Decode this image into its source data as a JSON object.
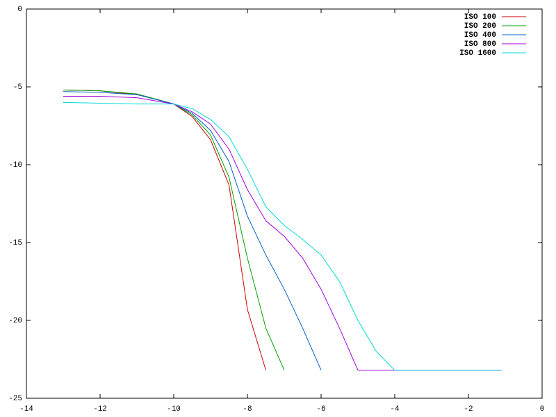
{
  "chart_data": {
    "type": "line",
    "x": [
      -13,
      -12,
      -11,
      -10,
      -9.5,
      -9,
      -8.5,
      -8,
      -7.5,
      -7,
      -6.5,
      -6,
      -5.5,
      -5,
      -4.5,
      -4,
      -3,
      -2,
      -1.1
    ],
    "series": [
      {
        "name": "ISO 100",
        "color": "#cc0000",
        "values": [
          -5.2,
          -5.25,
          -5.5,
          -6.1,
          -6.9,
          -8.4,
          -11.3,
          -19.3,
          -23.2,
          null,
          null,
          null,
          null,
          null,
          null,
          null,
          null,
          null,
          null
        ]
      },
      {
        "name": "ISO 200",
        "color": "#00a000",
        "values": [
          -5.2,
          -5.25,
          -5.45,
          -6.1,
          -6.8,
          -8.1,
          -10.8,
          -16.0,
          -20.5,
          -23.2,
          null,
          null,
          null,
          null,
          null,
          null,
          null,
          null,
          null
        ]
      },
      {
        "name": "ISO 400",
        "color": "#0060cc",
        "values": [
          -5.3,
          -5.35,
          -5.5,
          -6.1,
          -6.7,
          -7.8,
          -9.8,
          -13.3,
          -15.8,
          -18.0,
          -20.5,
          -23.2,
          null,
          null,
          null,
          null,
          null,
          null,
          null
        ]
      },
      {
        "name": "ISO 800",
        "color": "#a000e0",
        "values": [
          -5.6,
          -5.6,
          -5.7,
          -6.1,
          -6.6,
          -7.4,
          -9.0,
          -11.6,
          -13.6,
          -14.6,
          -16.0,
          -18.0,
          -20.5,
          -23.2,
          -23.2,
          -23.2,
          -23.2,
          -23.2,
          -23.2
        ]
      },
      {
        "name": "ISO 1600",
        "color": "#00d8d8",
        "values": [
          -6.0,
          -6.05,
          -6.1,
          -6.1,
          -6.4,
          -7.1,
          -8.2,
          -10.3,
          -12.7,
          -13.9,
          -14.8,
          -15.8,
          -17.5,
          -20.0,
          -22.0,
          -23.2,
          -23.2,
          -23.2,
          -23.2
        ]
      }
    ],
    "xlim": [
      -14,
      0
    ],
    "ylim": [
      -25,
      0
    ],
    "xticks": [
      -14,
      -12,
      -10,
      -8,
      -6,
      -4,
      -2,
      0
    ],
    "yticks": [
      -25,
      -20,
      -15,
      -10,
      -5,
      0
    ],
    "legend": "top-right"
  }
}
